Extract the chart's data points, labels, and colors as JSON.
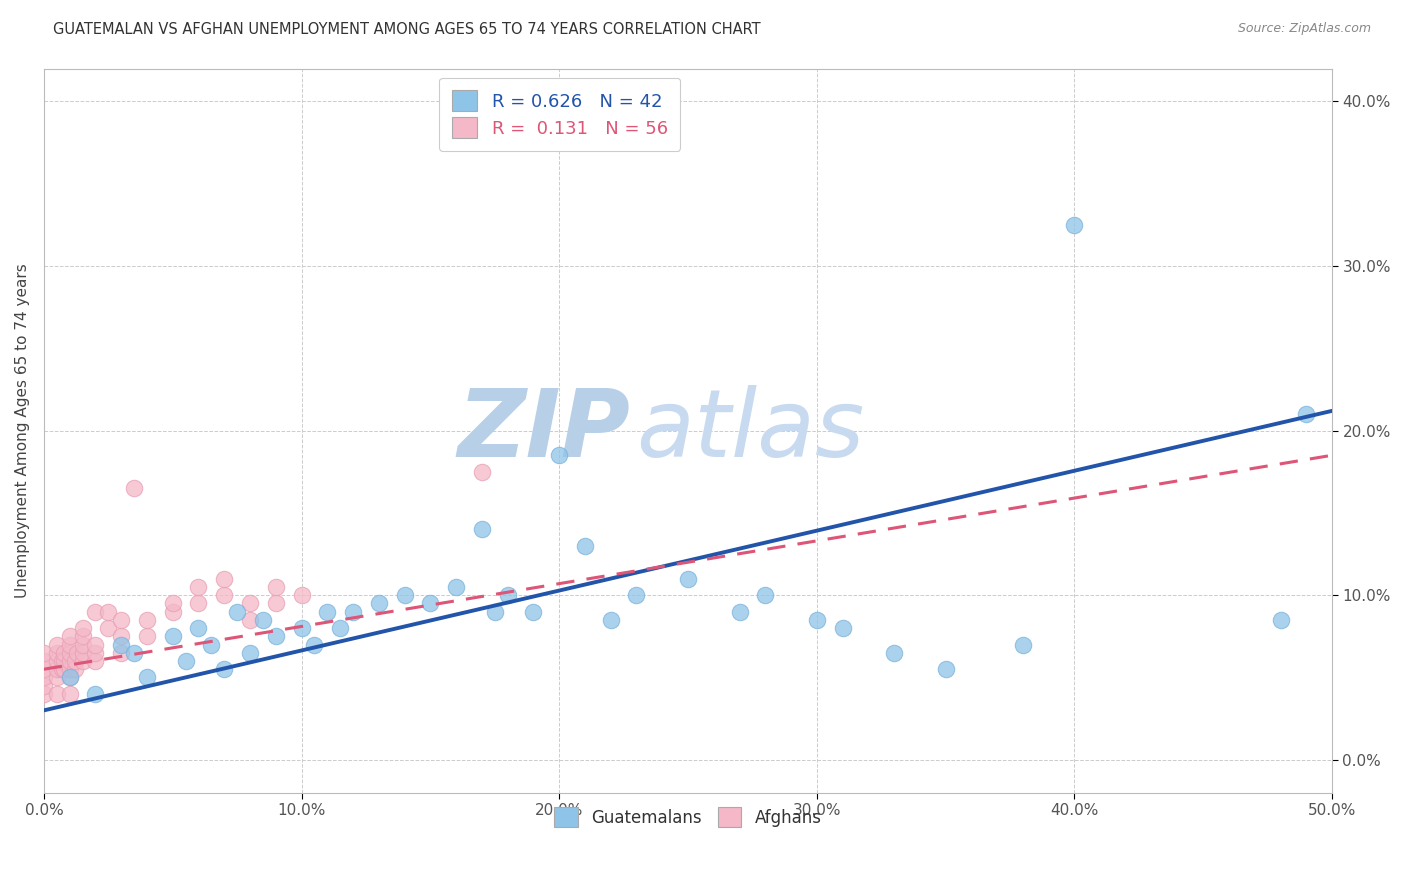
{
  "title": "GUATEMALAN VS AFGHAN UNEMPLOYMENT AMONG AGES 65 TO 74 YEARS CORRELATION CHART",
  "source": "Source: ZipAtlas.com",
  "ylabel": "Unemployment Among Ages 65 to 74 years",
  "xlim": [
    0.0,
    0.5
  ],
  "ylim": [
    -0.02,
    0.42
  ],
  "xticks": [
    0.0,
    0.1,
    0.2,
    0.3,
    0.4,
    0.5
  ],
  "yticks": [
    0.0,
    0.1,
    0.2,
    0.3,
    0.4
  ],
  "background_color": "#ffffff",
  "grid_color": "#cccccc",
  "watermark_zip_color": "#b8cfe8",
  "watermark_atlas_color": "#c8daf0",
  "legend_R_guatemalan": "0.626",
  "legend_N_guatemalan": "42",
  "legend_R_afghan": "0.131",
  "legend_N_afghan": "56",
  "guatemalan_color": "#8ec4e8",
  "guatemalan_edge_color": "#7ab3dd",
  "guatemalan_line_color": "#2255aa",
  "afghan_color": "#f4b8c8",
  "afghan_edge_color": "#e8a0b4",
  "afghan_line_color": "#dd5577",
  "guat_line_x0": 0.0,
  "guat_line_y0": 0.03,
  "guat_line_x1": 0.5,
  "guat_line_y1": 0.212,
  "afgh_line_x0": 0.0,
  "afgh_line_y0": 0.055,
  "afgh_line_x1": 0.5,
  "afgh_line_y1": 0.185,
  "guat_x": [
    0.01,
    0.02,
    0.03,
    0.035,
    0.04,
    0.05,
    0.055,
    0.06,
    0.065,
    0.07,
    0.075,
    0.08,
    0.085,
    0.09,
    0.1,
    0.105,
    0.11,
    0.115,
    0.12,
    0.13,
    0.14,
    0.15,
    0.16,
    0.17,
    0.175,
    0.18,
    0.19,
    0.2,
    0.21,
    0.22,
    0.23,
    0.25,
    0.27,
    0.28,
    0.3,
    0.31,
    0.33,
    0.35,
    0.38,
    0.4,
    0.48,
    0.49
  ],
  "guat_y": [
    0.05,
    0.04,
    0.07,
    0.065,
    0.05,
    0.075,
    0.06,
    0.08,
    0.07,
    0.055,
    0.09,
    0.065,
    0.085,
    0.075,
    0.08,
    0.07,
    0.09,
    0.08,
    0.09,
    0.095,
    0.1,
    0.095,
    0.105,
    0.14,
    0.09,
    0.1,
    0.09,
    0.185,
    0.13,
    0.085,
    0.1,
    0.11,
    0.09,
    0.1,
    0.085,
    0.08,
    0.065,
    0.055,
    0.07,
    0.325,
    0.085,
    0.21
  ],
  "afgh_x": [
    0.0,
    0.0,
    0.0,
    0.0,
    0.0,
    0.0,
    0.005,
    0.005,
    0.005,
    0.005,
    0.005,
    0.005,
    0.007,
    0.007,
    0.008,
    0.008,
    0.008,
    0.01,
    0.01,
    0.01,
    0.01,
    0.01,
    0.01,
    0.01,
    0.012,
    0.012,
    0.013,
    0.015,
    0.015,
    0.015,
    0.015,
    0.015,
    0.02,
    0.02,
    0.02,
    0.02,
    0.025,
    0.025,
    0.03,
    0.03,
    0.03,
    0.035,
    0.04,
    0.04,
    0.05,
    0.05,
    0.06,
    0.06,
    0.07,
    0.07,
    0.08,
    0.08,
    0.09,
    0.09,
    0.1,
    0.17
  ],
  "afgh_y": [
    0.04,
    0.045,
    0.05,
    0.055,
    0.06,
    0.065,
    0.04,
    0.05,
    0.055,
    0.06,
    0.065,
    0.07,
    0.055,
    0.06,
    0.055,
    0.06,
    0.065,
    0.04,
    0.05,
    0.055,
    0.06,
    0.065,
    0.07,
    0.075,
    0.055,
    0.06,
    0.065,
    0.06,
    0.065,
    0.07,
    0.075,
    0.08,
    0.06,
    0.065,
    0.07,
    0.09,
    0.08,
    0.09,
    0.065,
    0.075,
    0.085,
    0.165,
    0.075,
    0.085,
    0.09,
    0.095,
    0.095,
    0.105,
    0.1,
    0.11,
    0.085,
    0.095,
    0.095,
    0.105,
    0.1,
    0.175
  ]
}
